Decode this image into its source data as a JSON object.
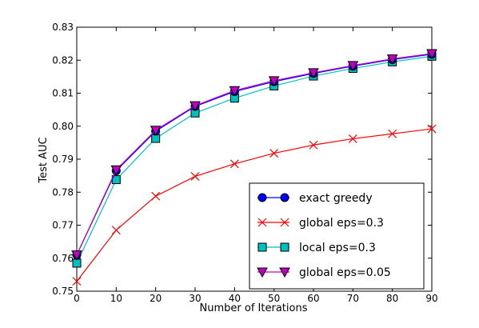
{
  "chart_data": {
    "type": "line",
    "title": "",
    "xlabel": "Number of Iterations",
    "ylabel": "Test AUC",
    "xlim": [
      0,
      90
    ],
    "ylim": [
      0.75,
      0.83
    ],
    "x": [
      0,
      10,
      20,
      30,
      40,
      50,
      60,
      70,
      80,
      90
    ],
    "xticks": [
      "0",
      "10",
      "20",
      "30",
      "40",
      "50",
      "60",
      "70",
      "80",
      "90"
    ],
    "yticks": [
      "0.75",
      "0.76",
      "0.77",
      "0.78",
      "0.79",
      "0.80",
      "0.81",
      "0.82",
      "0.83"
    ],
    "grid": false,
    "legend_position": "lower-right",
    "series": [
      {
        "name": "exact greedy",
        "color": "#0000ff",
        "marker": "circle",
        "values": [
          0.761,
          0.7865,
          0.7985,
          0.806,
          0.8105,
          0.8135,
          0.816,
          0.8182,
          0.8202,
          0.8218
        ]
      },
      {
        "name": "global eps=0.3",
        "color": "#ff0000",
        "marker": "x",
        "values": [
          0.753,
          0.7685,
          0.7788,
          0.7848,
          0.7886,
          0.7918,
          0.7943,
          0.7962,
          0.7977,
          0.7992
        ]
      },
      {
        "name": "local eps=0.3",
        "color": "#00bfbf",
        "marker": "square",
        "values": [
          0.7585,
          0.7838,
          0.7963,
          0.804,
          0.8085,
          0.8122,
          0.8152,
          0.8175,
          0.8195,
          0.8212
        ]
      },
      {
        "name": "global eps=0.05",
        "color": "#bf00bf",
        "marker": "triangle-down",
        "values": [
          0.761,
          0.7868,
          0.7988,
          0.8062,
          0.8108,
          0.8138,
          0.8162,
          0.8184,
          0.8204,
          0.822
        ]
      }
    ]
  }
}
